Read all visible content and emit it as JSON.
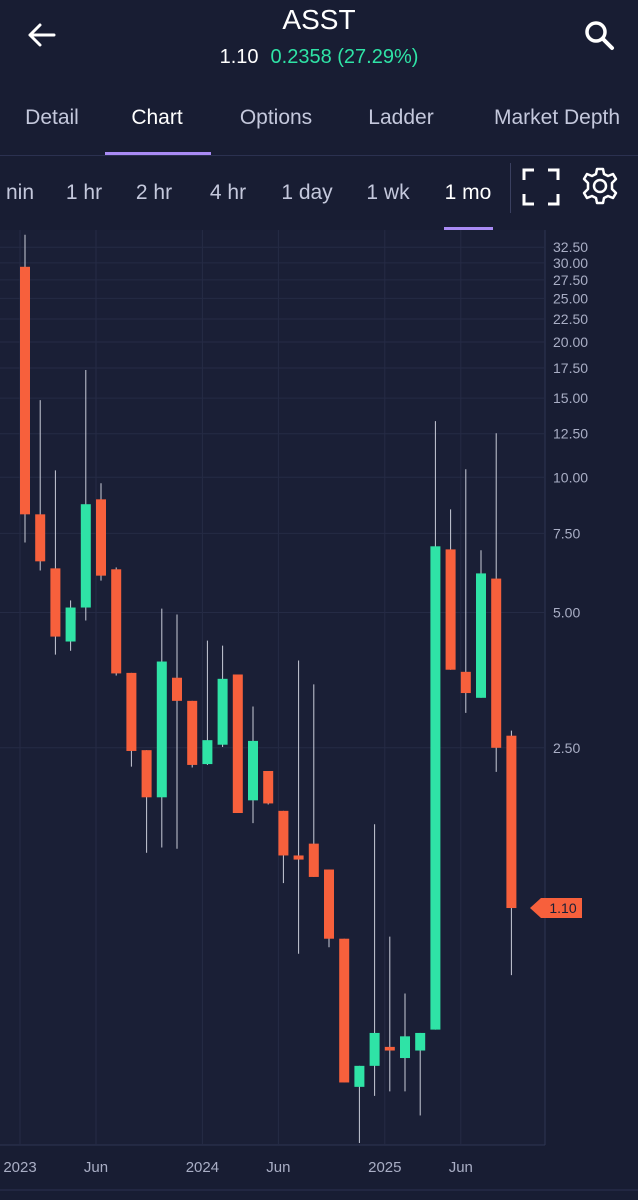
{
  "header": {
    "title": "ASST",
    "price": "1.10",
    "change": "0.2358 (27.29%)"
  },
  "tabs": [
    "Detail",
    "Chart",
    "Options",
    "Ladder",
    "Market Depth"
  ],
  "active_tab": 1,
  "intervals": [
    "nin",
    "1 hr",
    "2 hr",
    "4 hr",
    "1 day",
    "1 wk",
    "1 mo"
  ],
  "active_interval": 6,
  "chart_data": {
    "type": "candlestick",
    "categories": [
      "2023",
      null,
      null,
      null,
      null,
      "Jun",
      null,
      null,
      null,
      null,
      null,
      null,
      "2024",
      null,
      null,
      null,
      null,
      "Jun",
      null,
      null,
      null,
      null,
      null,
      null,
      "2025",
      null,
      null,
      null,
      null,
      "Jun",
      null,
      null,
      null
    ],
    "open": [
      29.4,
      8.27,
      6.27,
      4.31,
      5.13,
      8.93,
      6.24,
      3.67,
      2.47,
      1.94,
      3.58,
      3.18,
      2.3,
      2.54,
      3.64,
      1.91,
      2.22,
      1.81,
      1.44,
      1.53,
      1.34,
      0.94,
      0.44,
      0.49,
      0.54,
      0.51,
      0.53,
      0.59,
      6.91,
      3.69,
      3.23,
      5.95,
      2.66
    ],
    "high": [
      34.65,
      14.85,
      10.36,
      5.32,
      17.33,
      9.7,
      6.3,
      3.67,
      2.47,
      5.1,
      4.95,
      3.18,
      4.33,
      4.22,
      3.64,
      3.09,
      2.22,
      1.81,
      3.91,
      3.46,
      1.34,
      0.94,
      0.49,
      1.69,
      0.95,
      0.71,
      0.58,
      13.33,
      8.48,
      10.42,
      6.88,
      12.53,
      2.73
    ],
    "low": [
      7.16,
      6.2,
      4.03,
      4.11,
      4.8,
      5.89,
      3.62,
      2.27,
      1.46,
      1.5,
      1.49,
      2.26,
      2.29,
      2.51,
      1.79,
      1.7,
      1.87,
      1.25,
      0.87,
      1.29,
      0.9,
      0.45,
      0.33,
      0.42,
      0.43,
      0.43,
      0.38,
      0.59,
      3.73,
      2.99,
      3.23,
      2.21,
      0.78
    ],
    "close": [
      8.27,
      6.5,
      4.42,
      5.13,
      8.71,
      6.04,
      3.66,
      2.46,
      1.94,
      3.89,
      3.18,
      2.29,
      2.6,
      3.56,
      1.79,
      2.59,
      1.88,
      1.44,
      1.41,
      1.29,
      0.94,
      0.45,
      0.49,
      0.58,
      0.53,
      0.57,
      0.58,
      7.02,
      3.73,
      3.31,
      6.11,
      2.5,
      1.1
    ],
    "up_color": "#2fe3a6",
    "down_color": "#f7603c",
    "log_scale": true,
    "grid": true,
    "ylim": [
      0.33,
      35.5
    ],
    "yticks": [
      {
        "value": 32.5,
        "label": "32.50"
      },
      {
        "value": 30,
        "label": "30.00"
      },
      {
        "value": 27.5,
        "label": "27.50"
      },
      {
        "value": 25,
        "label": "25.00"
      },
      {
        "value": 22.5,
        "label": "22.50"
      },
      {
        "value": 20,
        "label": "20.00"
      },
      {
        "value": 17.5,
        "label": "17.50"
      },
      {
        "value": 15,
        "label": "15.00"
      },
      {
        "value": 12.5,
        "label": "12.50"
      },
      {
        "value": 10,
        "label": "10.00"
      },
      {
        "value": 7.5,
        "label": "7.50"
      },
      {
        "value": 5,
        "label": "5.00"
      },
      {
        "value": 2.5,
        "label": "2.50"
      }
    ],
    "last_price": {
      "value": 1.1,
      "label": "1.10"
    }
  }
}
